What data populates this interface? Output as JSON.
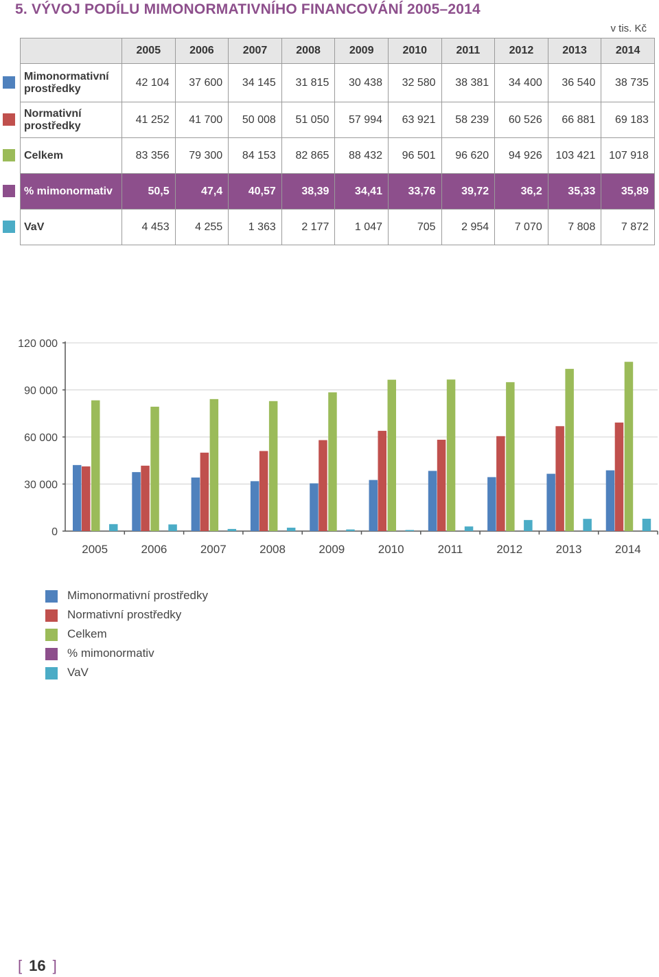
{
  "heading": "5. VÝVOJ PODÍLU MIMONORMATIVNÍHO FINANCOVÁNÍ 2005–2014",
  "unit": "v tis. Kč",
  "page_number": "16",
  "page_bracket_open": "[",
  "page_bracket_close": "]",
  "colors": {
    "mimo": "#4f81bd",
    "norm": "#c0504d",
    "celkem": "#9bbb59",
    "pct": "#8d4f8c",
    "vav": "#4bacc6"
  },
  "table": {
    "years": [
      "2005",
      "2006",
      "2007",
      "2008",
      "2009",
      "2010",
      "2011",
      "2012",
      "2013",
      "2014"
    ],
    "rows": [
      {
        "label": "Mimonormativní prostředky",
        "color": "#4f81bd",
        "values": [
          "42 104",
          "37 600",
          "34 145",
          "31 815",
          "30 438",
          "32 580",
          "38 381",
          "34 400",
          "36 540",
          "38 735"
        ]
      },
      {
        "label": "Normativní prostředky",
        "color": "#c0504d",
        "values": [
          "41 252",
          "41 700",
          "50 008",
          "51 050",
          "57 994",
          "63 921",
          "58 239",
          "60 526",
          "66 881",
          "69 183"
        ]
      },
      {
        "label": "Celkem",
        "color": "#9bbb59",
        "values": [
          "83 356",
          "79 300",
          "84 153",
          "82 865",
          "88 432",
          "96 501",
          "96 620",
          "94 926",
          "103 421",
          "107 918"
        ]
      },
      {
        "label": "% mimonormativ",
        "color": "#8d4f8c",
        "values": [
          "50,5",
          "47,4",
          "40,57",
          "38,39",
          "34,41",
          "33,76",
          "39,72",
          "36,2",
          "35,33",
          "35,89"
        ]
      },
      {
        "label": "VaV",
        "color": "#4bacc6",
        "values": [
          "4 453",
          "4 255",
          "1 363",
          "2 177",
          "1 047",
          "705",
          "2 954",
          "7 070",
          "7 808",
          "7 872"
        ]
      }
    ]
  },
  "chart_data": {
    "type": "bar",
    "categories": [
      "2005",
      "2006",
      "2007",
      "2008",
      "2009",
      "2010",
      "2011",
      "2012",
      "2013",
      "2014"
    ],
    "ylim": [
      0,
      120000
    ],
    "yticks": [
      0,
      30000,
      60000,
      90000,
      120000
    ],
    "ytick_labels": [
      "0",
      "30 000",
      "60 000",
      "90 000",
      "120 000"
    ],
    "series": [
      {
        "name": "Mimonormativní prostředky",
        "color": "#4f81bd",
        "values": [
          42104,
          37600,
          34145,
          31815,
          30438,
          32580,
          38381,
          34400,
          36540,
          38735
        ]
      },
      {
        "name": "Normativní prostředky",
        "color": "#c0504d",
        "values": [
          41252,
          41700,
          50008,
          51050,
          57994,
          63921,
          58239,
          60526,
          66881,
          69183
        ]
      },
      {
        "name": "Celkem",
        "color": "#9bbb59",
        "values": [
          83356,
          79300,
          84153,
          82865,
          88432,
          96501,
          96620,
          94926,
          103421,
          107918
        ]
      },
      {
        "name": "VaV",
        "color": "#4bacc6",
        "values": [
          4453,
          4255,
          1363,
          2177,
          1047,
          705,
          2954,
          7070,
          7808,
          7872
        ]
      }
    ],
    "legend": [
      {
        "name": "Mimonormativní prostředky",
        "color": "#4f81bd"
      },
      {
        "name": "Normativní prostředky",
        "color": "#c0504d"
      },
      {
        "name": "Celkem",
        "color": "#9bbb59"
      },
      {
        "name": "% mimonormativ",
        "color": "#8d4f8c"
      },
      {
        "name": "VaV",
        "color": "#4bacc6"
      }
    ],
    "legend_position": "bottom-left"
  }
}
